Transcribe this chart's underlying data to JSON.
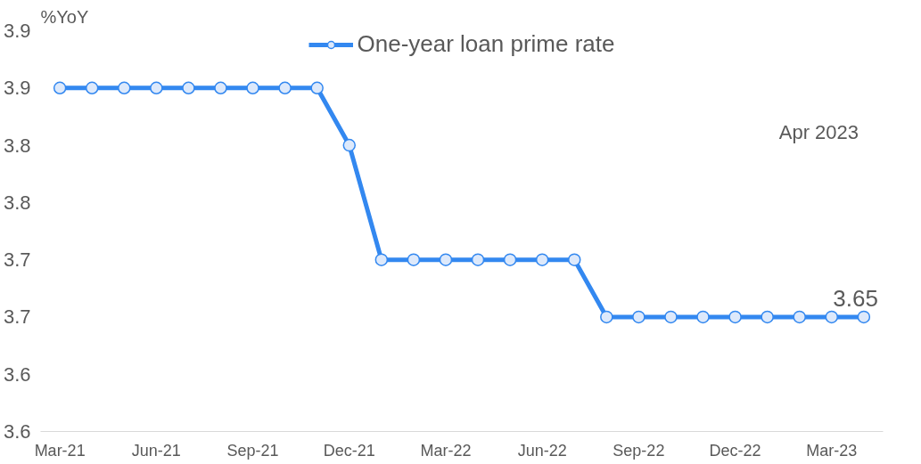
{
  "chart_data": {
    "type": "line",
    "ylabel": "%YoY",
    "categories": [
      "Mar-21",
      null,
      null,
      "Jun-21",
      null,
      null,
      "Sep-21",
      null,
      null,
      "Dec-21",
      null,
      null,
      "Mar-22",
      null,
      null,
      "Jun-22",
      null,
      null,
      "Sep-22",
      null,
      null,
      "Dec-22",
      null,
      null,
      "Mar-23",
      null
    ],
    "series": [
      {
        "name": "One-year loan prime rate",
        "color": "#3388f0",
        "values": [
          3.85,
          3.85,
          3.85,
          3.85,
          3.85,
          3.85,
          3.85,
          3.85,
          3.85,
          3.8,
          3.7,
          3.7,
          3.7,
          3.7,
          3.7,
          3.7,
          3.7,
          3.65,
          3.65,
          3.65,
          3.65,
          3.65,
          3.65,
          3.65,
          3.65,
          3.65
        ],
        "value_labels": [
          null,
          null,
          null,
          null,
          null,
          null,
          null,
          null,
          null,
          null,
          null,
          null,
          null,
          null,
          null,
          null,
          null,
          null,
          null,
          null,
          null,
          null,
          null,
          null,
          null,
          "3.65"
        ]
      }
    ],
    "ylim": [
      3.55,
      3.9
    ],
    "yticks": [
      {
        "value": 3.55,
        "label": "3.6"
      },
      {
        "value": 3.6,
        "label": "3.6"
      },
      {
        "value": 3.65,
        "label": "3.7"
      },
      {
        "value": 3.7,
        "label": "3.7"
      },
      {
        "value": 3.75,
        "label": "3.8"
      },
      {
        "value": 3.8,
        "label": "3.8"
      },
      {
        "value": 3.85,
        "label": "3.9"
      },
      {
        "value": 3.9,
        "label": "3.9"
      }
    ],
    "annotations": [
      "Apr 2023"
    ],
    "marker": "circle",
    "line_style": "solid",
    "legend": "top",
    "grid": false
  }
}
